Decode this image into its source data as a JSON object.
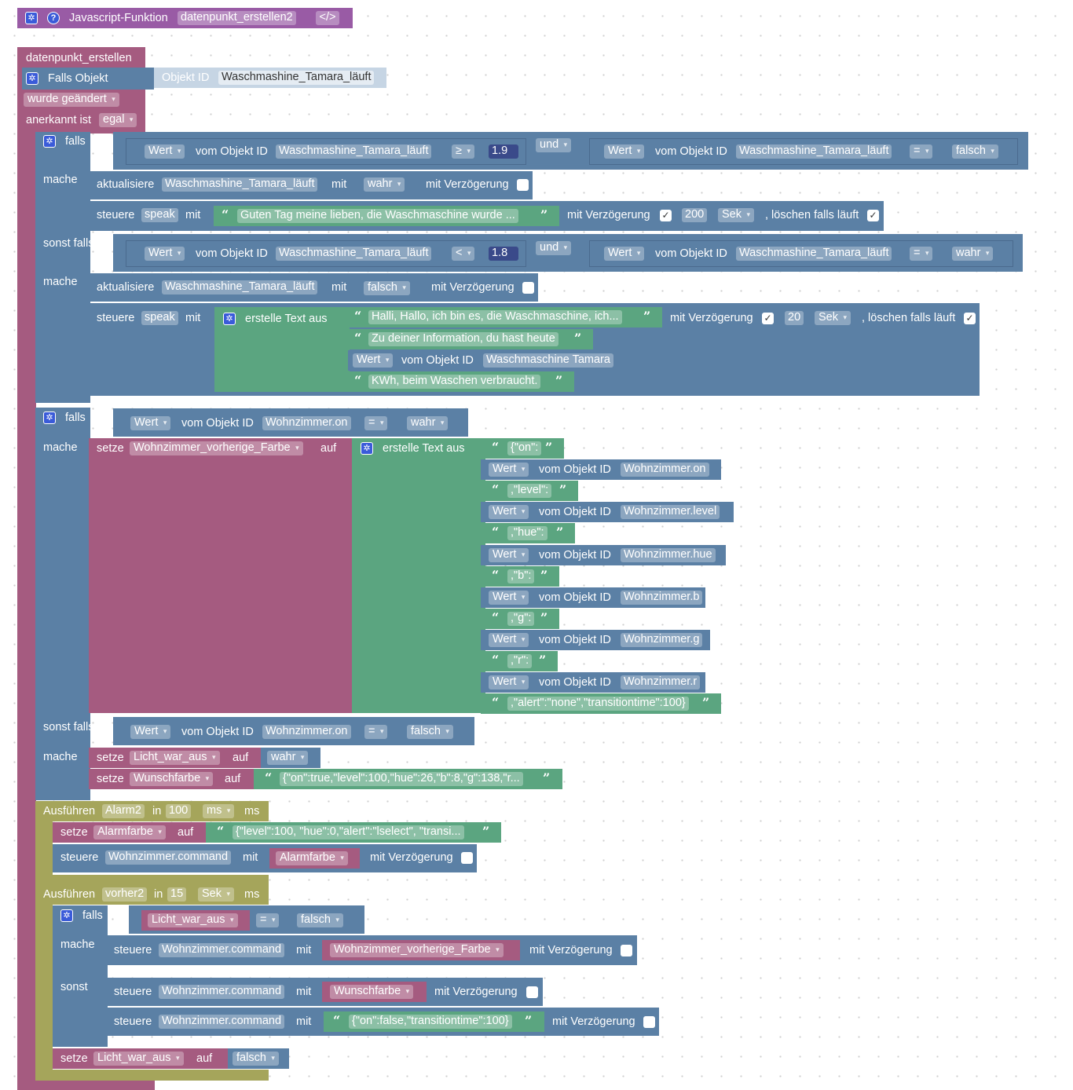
{
  "header": {
    "label": "Javascript-Funktion",
    "name": "datenpunkt_erstellen2",
    "code_icon": "</>"
  },
  "trigger": {
    "title": "datenpunkt_erstellen",
    "falls_objekt": "Falls Objekt",
    "objekt_id_label": "Objekt ID",
    "objekt_id": "Waschmashine_Tamara_läuft",
    "wurde": "wurde geändert",
    "anerkannt_label": "anerkannt ist",
    "anerkannt": "egal"
  },
  "kw": {
    "falls": "falls",
    "mache": "mache",
    "sonst_falls": "sonst falls",
    "sonst": "sonst",
    "und": "und",
    "wert": "Wert",
    "vom_objekt": "vom Objekt ID",
    "aktualisiere": "aktualisiere",
    "mit": "mit",
    "mit_verz": "mit Verzögerung",
    "steuere": "steuere",
    "loeschen": ", löschen falls läuft",
    "erstelle": "erstelle Text aus",
    "setze": "setze",
    "auf": "auf",
    "ausfuehren": "Ausführen",
    "in": "in",
    "ms": "ms",
    "sek": "Sek",
    "eq": "=",
    "ge": "≥",
    "lt": "<",
    "open_q": "“",
    "close_q": "”",
    "checked": "✓"
  },
  "cond1": {
    "id_a": "Waschmashine_Tamara_läuft",
    "val_a": "1.9",
    "id_b": "Waschmashine_Tamara_läuft",
    "val_b": "falsch",
    "upd_id": "Waschmashine_Tamara_läuft",
    "upd_val": "wahr",
    "speak": "speak",
    "text": "Guten Tag meine lieben, die Waschmaschine wurde ...",
    "delay": "200"
  },
  "cond2": {
    "id_a": "Waschmashine_Tamara_läuft",
    "val_a": "1.8",
    "id_b": "Waschmashine_Tamara_läuft",
    "val_b": "wahr",
    "upd_id": "Waschmashine_Tamara_läuft",
    "upd_val": "falsch",
    "speak": "speak",
    "t1": "Halli, Hallo, ich bin es, die Waschmaschine, ich...",
    "t2": "Zu deiner Information, du hast heute",
    "wert_id": "Waschmaschine Tamara",
    "t3": "KWh, beim Waschen verbraucht.",
    "delay": "20"
  },
  "cond3": {
    "id": "Wohnzimmer.on",
    "val": "wahr",
    "var": "Wohnzimmer_vorherige_Farbe",
    "items": [
      {
        "kind": "text",
        "v": "{\"on\":"
      },
      {
        "kind": "wert",
        "v": "Wohnzimmer.on"
      },
      {
        "kind": "text",
        "v": ",\"level\":"
      },
      {
        "kind": "wert",
        "v": "Wohnzimmer.level"
      },
      {
        "kind": "text",
        "v": ",\"hue\":"
      },
      {
        "kind": "wert",
        "v": "Wohnzimmer.hue"
      },
      {
        "kind": "text",
        "v": ",\"b\":"
      },
      {
        "kind": "wert",
        "v": "Wohnzimmer.b"
      },
      {
        "kind": "text",
        "v": ",\"g\":"
      },
      {
        "kind": "wert",
        "v": "Wohnzimmer.g"
      },
      {
        "kind": "text",
        "v": ",\"r\":"
      },
      {
        "kind": "wert",
        "v": "Wohnzimmer.r"
      },
      {
        "kind": "text",
        "v": ",\"alert\":\"none\",\"transitiontime\":100}"
      }
    ]
  },
  "cond4": {
    "id": "Wohnzimmer.on",
    "val": "falsch",
    "var1": "Licht_war_aus",
    "val1": "wahr",
    "var2": "Wunschfarbe",
    "val2": "{\"on\":true,\"level\":100,\"hue\":26,\"b\":8,\"g\":138,\"r..."
  },
  "timer1": {
    "name": "Alarm2",
    "value": "100",
    "unit": "ms",
    "var": "Alarmfarbe",
    "text": "{\"level\":100, \"hue\":0,\"alert\":\"lselect\", \"transi...",
    "target": "Wohnzimmer.command",
    "value_var": "Alarmfarbe"
  },
  "timer2": {
    "name": "vorher2",
    "value": "15",
    "unit": "Sek",
    "cond_var": "Licht_war_aus",
    "cond_val": "falsch",
    "target": "Wohnzimmer.command",
    "v1": "Wohnzimmer_vorherige_Farbe",
    "v2": "Wunschfarbe",
    "v3": "{\"on\":false,\"transitiontime\":100}",
    "set_var": "Licht_war_aus",
    "set_val": "falsch"
  }
}
